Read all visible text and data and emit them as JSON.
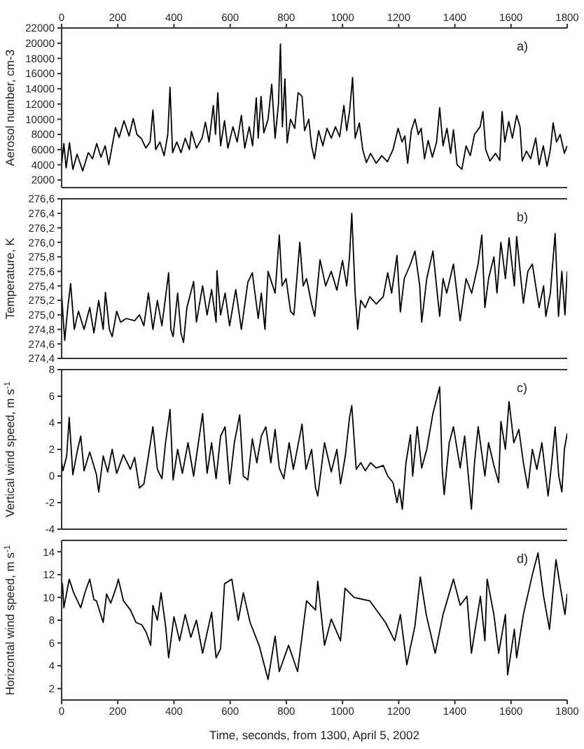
{
  "chart_data": [
    {
      "type": "line",
      "annotations": [
        "a)"
      ],
      "ylabel": "Aerosol number, cm-3",
      "color": "#000000",
      "x": [
        0,
        8,
        16,
        28,
        40,
        55,
        75,
        95,
        110,
        125,
        140,
        155,
        168,
        180,
        192,
        205,
        222,
        240,
        255,
        268,
        285,
        300,
        315,
        325,
        335,
        350,
        365,
        378,
        386,
        395,
        410,
        425,
        440,
        455,
        462,
        480,
        500,
        512,
        525,
        540,
        548,
        556,
        566,
        580,
        592,
        610,
        625,
        640,
        652,
        668,
        680,
        693,
        700,
        710,
        720,
        735,
        748,
        760,
        772,
        779,
        786,
        795,
        803,
        815,
        830,
        842,
        856,
        865,
        880,
        890,
        900,
        915,
        930,
        945,
        960,
        975,
        990,
        1005,
        1015,
        1025,
        1036,
        1045,
        1060,
        1072,
        1085,
        1100,
        1120,
        1140,
        1160,
        1180,
        1198,
        1212,
        1222,
        1232,
        1245,
        1258,
        1270,
        1280,
        1292,
        1305,
        1320,
        1335,
        1346,
        1358,
        1372,
        1385,
        1395,
        1408,
        1425,
        1440,
        1455,
        1470,
        1490,
        1500,
        1510,
        1525,
        1545,
        1560,
        1568,
        1578,
        1592,
        1605,
        1620,
        1632,
        1640,
        1655,
        1670,
        1688,
        1700,
        1715,
        1728,
        1740,
        1750,
        1762,
        1775,
        1790,
        1800
      ],
      "values": [
        4000,
        6800,
        3600,
        6900,
        3400,
        5400,
        3200,
        5600,
        4800,
        6800,
        5000,
        6500,
        4000,
        6500,
        8900,
        7600,
        9800,
        7800,
        10100,
        8000,
        7400,
        6200,
        7000,
        11200,
        6000,
        7000,
        5200,
        8000,
        14200,
        5600,
        7000,
        5600,
        7500,
        6000,
        8400,
        6200,
        7500,
        9600,
        7000,
        11800,
        8000,
        13500,
        6500,
        9800,
        6200,
        9000,
        7000,
        10500,
        6200,
        9000,
        6500,
        12800,
        7500,
        13000,
        8200,
        10000,
        14600,
        7500,
        12000,
        19900,
        9000,
        15300,
        6900,
        10000,
        8800,
        13500,
        13000,
        8500,
        10000,
        6500,
        4800,
        8500,
        6500,
        8800,
        7500,
        9000,
        7700,
        11800,
        8500,
        11000,
        15500,
        7500,
        9500,
        6000,
        4300,
        5500,
        4200,
        5200,
        4400,
        6000,
        8800,
        7000,
        7800,
        4200,
        8500,
        10000,
        8000,
        8800,
        4800,
        7200,
        5000,
        7000,
        11500,
        6500,
        8800,
        5500,
        8600,
        4000,
        3400,
        6500,
        5200,
        8000,
        9000,
        11000,
        6000,
        4500,
        5500,
        4600,
        11000,
        7000,
        9700,
        7500,
        10500,
        9000,
        4500,
        5800,
        4800,
        7500,
        4000,
        6500,
        3800,
        6000,
        9500,
        7000,
        8000,
        5500,
        6500
      ],
      "xlim": [
        0,
        1800
      ],
      "xticks": [
        0,
        200,
        400,
        600,
        800,
        1000,
        1200,
        1400,
        1600,
        1800
      ],
      "tick_labels": "y",
      "x2lim": [
        0,
        1800
      ],
      "x2ticks": [
        0,
        200,
        400,
        600,
        800,
        1000,
        1200,
        1400,
        1600,
        1800
      ],
      "ylim": [
        1000,
        22000
      ],
      "yticks": [
        2000,
        4000,
        6000,
        8000,
        10000,
        12000,
        14000,
        16000,
        18000,
        20000,
        22000
      ]
    },
    {
      "type": "line",
      "annotations": [
        "b)"
      ],
      "ylabel": "Temperature, K",
      "color": "#000000",
      "x": [
        0,
        5,
        11,
        22,
        32,
        45,
        60,
        80,
        100,
        115,
        132,
        148,
        156,
        170,
        180,
        196,
        210,
        230,
        260,
        277,
        293,
        309,
        325,
        341,
        357,
        381,
        389,
        397,
        413,
        425,
        434,
        446,
        470,
        480,
        502,
        518,
        534,
        550,
        553,
        566,
        582,
        598,
        620,
        640,
        663,
        679,
        700,
        711,
        724,
        735,
        760,
        775,
        785,
        799,
        815,
        827,
        848,
        860,
        872,
        890,
        901,
        920,
        940,
        960,
        980,
        1000,
        1015,
        1025,
        1033,
        1045,
        1054,
        1065,
        1081,
        1097,
        1120,
        1145,
        1161,
        1175,
        1194,
        1206,
        1220,
        1242,
        1258,
        1275,
        1282,
        1300,
        1322,
        1340,
        1346,
        1358,
        1371,
        1395,
        1419,
        1440,
        1460,
        1483,
        1496,
        1507,
        1520,
        1539,
        1550,
        1564,
        1580,
        1593,
        1612,
        1620,
        1644,
        1660,
        1676,
        1700,
        1716,
        1724,
        1740,
        1757,
        1769,
        1781,
        1792,
        1800
      ],
      "values": [
        275.31,
        274.98,
        274.65,
        275.1,
        275.43,
        274.8,
        275.05,
        274.8,
        275.1,
        274.75,
        275.2,
        274.8,
        275.31,
        274.8,
        274.7,
        275.05,
        274.9,
        274.95,
        274.92,
        275.0,
        274.85,
        275.3,
        274.8,
        275.2,
        274.85,
        275.58,
        274.8,
        274.7,
        275.3,
        274.75,
        274.62,
        275.1,
        275.46,
        274.9,
        275.4,
        275.0,
        275.35,
        274.9,
        275.61,
        275.0,
        275.3,
        274.85,
        275.35,
        274.8,
        275.45,
        275.58,
        274.95,
        275.3,
        274.8,
        275.6,
        275.3,
        276.1,
        275.4,
        275.5,
        275.05,
        275.0,
        276.0,
        275.4,
        275.5,
        275.15,
        274.98,
        275.76,
        275.4,
        275.6,
        275.34,
        275.75,
        275.4,
        275.8,
        276.4,
        275.3,
        274.8,
        275.2,
        275.1,
        275.25,
        275.15,
        275.25,
        275.58,
        275.3,
        275.82,
        275.04,
        275.5,
        275.7,
        275.88,
        275.4,
        274.9,
        275.5,
        275.88,
        275.2,
        274.98,
        275.5,
        275.3,
        275.7,
        274.92,
        275.5,
        275.3,
        275.7,
        276.1,
        275.1,
        275.5,
        275.8,
        275.3,
        276.0,
        275.5,
        276.06,
        275.4,
        276.08,
        275.16,
        275.6,
        275.7,
        275.1,
        275.4,
        274.98,
        275.3,
        276.12,
        274.98,
        275.6,
        275.0,
        275.6
      ],
      "xlim": [
        0,
        1800
      ],
      "xticks": [
        0,
        200,
        400,
        600,
        800,
        1000,
        1200,
        1400,
        1600,
        1800
      ],
      "tick_labels": "y",
      "ylim": [
        274.4,
        276.6
      ],
      "yticks": [
        {
          "value": 274.4,
          "label": "274,4"
        },
        {
          "value": 274.6,
          "label": "274,6"
        },
        {
          "value": 274.8,
          "label": "274,8"
        },
        {
          "value": 275.0,
          "label": "275,0"
        },
        {
          "value": 275.2,
          "label": "275,2"
        },
        {
          "value": 275.4,
          "label": "275,4"
        },
        {
          "value": 275.6,
          "label": "275,6"
        },
        {
          "value": 275.8,
          "label": "275,8"
        },
        {
          "value": 276.0,
          "label": "276,0"
        },
        {
          "value": 276.2,
          "label": "276,2"
        },
        {
          "value": 276.4,
          "label": "276,4"
        },
        {
          "value": 276.6,
          "label": "276,6"
        }
      ]
    },
    {
      "type": "line",
      "annotations": [
        "c)"
      ],
      "ylabel": "Vertical wind speed, m s$^{-1}$",
      "color": "#000000",
      "x": [
        0,
        5,
        18,
        27,
        40,
        55,
        68,
        80,
        100,
        124,
        132,
        148,
        164,
        180,
        196,
        220,
        245,
        260,
        277,
        293,
        309,
        325,
        341,
        357,
        370,
        386,
        397,
        413,
        430,
        450,
        470,
        502,
        518,
        534,
        550,
        566,
        582,
        598,
        615,
        634,
        647,
        663,
        679,
        695,
        711,
        727,
        745,
        760,
        775,
        791,
        810,
        825,
        856,
        870,
        890,
        904,
        912,
        936,
        960,
        980,
        993,
        1010,
        1025,
        1033,
        1049,
        1065,
        1081,
        1100,
        1120,
        1145,
        1161,
        1180,
        1194,
        1203,
        1213,
        1226,
        1242,
        1250,
        1266,
        1282,
        1300,
        1322,
        1346,
        1355,
        1362,
        1380,
        1395,
        1419,
        1435,
        1459,
        1470,
        1483,
        1507,
        1520,
        1539,
        1556,
        1564,
        1580,
        1593,
        1610,
        1628,
        1644,
        1660,
        1676,
        1692,
        1710,
        1732,
        1745,
        1757,
        1770,
        1781,
        1790,
        1800
      ],
      "values": [
        1.1,
        0.4,
        1.5,
        4.4,
        0.1,
        1.8,
        3.0,
        0.4,
        1.8,
        0.1,
        -1.2,
        1.5,
        0.3,
        2.0,
        0.2,
        1.6,
        0.5,
        1.4,
        -0.9,
        -0.6,
        1.5,
        3.7,
        0.5,
        -0.2,
        2.5,
        5.0,
        -0.3,
        2.0,
        0.2,
        2.5,
        0.0,
        4.7,
        0.2,
        2.5,
        -0.2,
        3.0,
        3.7,
        -0.6,
        2.5,
        4.6,
        0.0,
        -0.3,
        2.8,
        1.0,
        3.0,
        3.7,
        1.0,
        3.5,
        0.6,
        -0.2,
        2.5,
        0.5,
        3.9,
        0.5,
        2.0,
        -0.9,
        -1.5,
        2.5,
        0.3,
        2.0,
        -0.6,
        1.5,
        4.4,
        5.3,
        0.5,
        1.0,
        0.4,
        1.0,
        0.6,
        0.8,
        0.0,
        -0.5,
        -2.0,
        -1.0,
        -2.5,
        1.0,
        3.1,
        0.0,
        3.7,
        0.6,
        2.0,
        4.7,
        6.7,
        0.5,
        -1.4,
        2.5,
        3.7,
        0.6,
        3.0,
        -2.5,
        1.0,
        3.7,
        0.0,
        2.5,
        0.8,
        -0.5,
        4.1,
        2.0,
        5.6,
        2.5,
        3.5,
        1.0,
        -0.9,
        2.0,
        0.5,
        2.5,
        -1.5,
        1.0,
        3.7,
        0.0,
        -1.2,
        2.0,
        3.2
      ],
      "xlim": [
        0,
        1800
      ],
      "xticks": [
        0,
        200,
        400,
        600,
        800,
        1000,
        1200,
        1400,
        1600,
        1800
      ],
      "tick_labels": "y",
      "ylim": [
        -4,
        8
      ],
      "yticks": [
        -4,
        -2,
        0,
        2,
        4,
        6,
        8
      ]
    },
    {
      "type": "line",
      "annotations": [
        "d)"
      ],
      "ylabel": "Horizontal wind speed, m s$^{-1}$",
      "xlabel": "Time, seconds, from 1300, April 5, 2002",
      "color": "#000000",
      "x": [
        0,
        3,
        8,
        27,
        43,
        68,
        84,
        100,
        115,
        124,
        148,
        160,
        175,
        196,
        202,
        220,
        245,
        265,
        285,
        300,
        317,
        325,
        341,
        354,
        370,
        381,
        400,
        420,
        440,
        460,
        480,
        502,
        534,
        550,
        566,
        580,
        606,
        629,
        647,
        671,
        703,
        735,
        760,
        775,
        808,
        840,
        872,
        904,
        912,
        936,
        960,
        993,
        1009,
        1041,
        1097,
        1153,
        1186,
        1206,
        1229,
        1258,
        1277,
        1298,
        1330,
        1358,
        1395,
        1419,
        1443,
        1459,
        1491,
        1507,
        1515,
        1539,
        1556,
        1580,
        1588,
        1612,
        1620,
        1644,
        1676,
        1696,
        1716,
        1737,
        1760,
        1781,
        1792,
        1800
      ],
      "values": [
        10.1,
        11.2,
        9.1,
        11.6,
        10.4,
        9.1,
        10.5,
        11.6,
        9.8,
        9.7,
        7.8,
        10.3,
        9.5,
        11.0,
        11.6,
        9.7,
        8.9,
        7.8,
        7.6,
        7.0,
        5.8,
        9.3,
        8.0,
        10.4,
        7.5,
        4.7,
        8.3,
        6.2,
        8.5,
        6.5,
        8.0,
        5.1,
        8.7,
        4.7,
        5.5,
        11.2,
        11.6,
        8.0,
        10.4,
        7.8,
        5.8,
        2.8,
        6.6,
        3.5,
        5.8,
        3.5,
        9.7,
        8.9,
        11.4,
        5.8,
        8.1,
        6.2,
        10.8,
        10.0,
        9.7,
        7.8,
        6.2,
        8.5,
        4.1,
        7.5,
        11.8,
        8.5,
        5.1,
        8.5,
        11.6,
        9.3,
        10.1,
        5.1,
        10.1,
        6.2,
        11.6,
        8.5,
        5.1,
        8.5,
        3.2,
        7.2,
        4.7,
        8.5,
        12.0,
        13.9,
        10.1,
        7.2,
        13.3,
        10.1,
        8.5,
        10.3
      ],
      "xlim": [
        0,
        1800
      ],
      "xticks": [
        0,
        200,
        400,
        600,
        800,
        1000,
        1200,
        1400,
        1600,
        1800
      ],
      "ylim": [
        1,
        15
      ],
      "yticks": [
        2,
        4,
        6,
        8,
        10,
        12,
        14
      ]
    }
  ]
}
